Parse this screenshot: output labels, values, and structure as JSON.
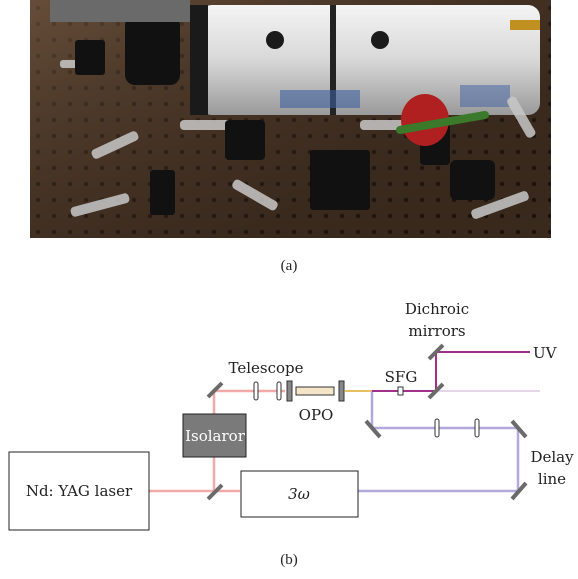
{
  "panel_a": {
    "caption": "(a)"
  },
  "panel_b": {
    "caption": "(b)",
    "labels": {
      "laser": "Nd: YAG laser",
      "isolator": "Isolaror",
      "telescope": "Telescope",
      "opo": "OPO",
      "sfg": "SFG",
      "dichroic_line1": "Dichroic",
      "dichroic_line2": "mirrors",
      "uv": "UV",
      "tripler": "3ω",
      "delay_line1": "Delay",
      "delay_line2": "line"
    }
  },
  "colors": {
    "beam_ir": "#f4a9a9",
    "beam_opo": "#e8a040",
    "beam_third": "#b4a8dc",
    "beam_uv": "#a0308a",
    "isolator_fill": "#7a7a7a",
    "mirror": "#6a6a6a"
  }
}
